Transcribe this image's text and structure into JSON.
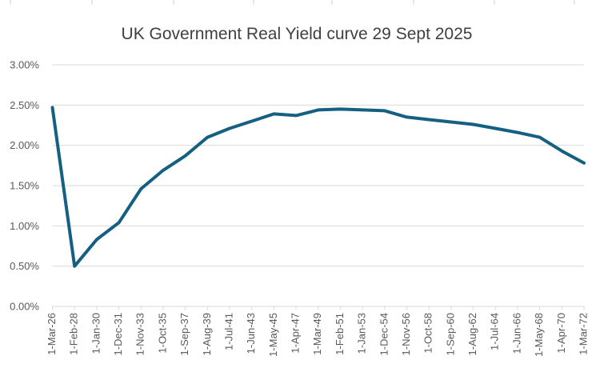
{
  "chart_data": {
    "type": "line",
    "title": "UK Government Real Yield curve 29 Sept 2025",
    "categories": [
      "1-Mar-26",
      "1-Feb-28",
      "1-Jan-30",
      "1-Dec-31",
      "1-Nov-33",
      "1-Oct-35",
      "1-Sep-37",
      "1-Aug-39",
      "1-Jul-41",
      "1-Jun-43",
      "1-May-45",
      "1-Apr-47",
      "1-Mar-49",
      "1-Feb-51",
      "1-Jan-53",
      "1-Dec-54",
      "1-Nov-56",
      "1-Oct-58",
      "1-Sep-60",
      "1-Aug-62",
      "1-Jul-64",
      "1-Jun-66",
      "1-May-68",
      "1-Apr-70",
      "1-Mar-72"
    ],
    "values": [
      2.47,
      0.5,
      0.83,
      1.04,
      1.46,
      1.69,
      1.87,
      2.1,
      2.21,
      2.3,
      2.39,
      2.37,
      2.44,
      2.45,
      2.44,
      2.43,
      2.35,
      2.32,
      2.29,
      2.26,
      2.21,
      2.16,
      2.1,
      1.93,
      1.78
    ],
    "value_unit": "%",
    "xlabel": "",
    "ylabel": "",
    "ylim": [
      0,
      3
    ],
    "y_ticks": [
      0,
      0.5,
      1,
      1.5,
      2,
      2.5,
      3
    ],
    "y_tick_labels": [
      "0.00%",
      "0.50%",
      "1.00%",
      "1.50%",
      "2.00%",
      "2.50%",
      "3.00%"
    ],
    "grid": true,
    "legend": "none",
    "colors": {
      "line": "#156082",
      "grid": "#d9d9d9",
      "axis": "#d9d9d9",
      "tick_label": "#595959",
      "title": "#404040",
      "background": "#ffffff"
    }
  }
}
